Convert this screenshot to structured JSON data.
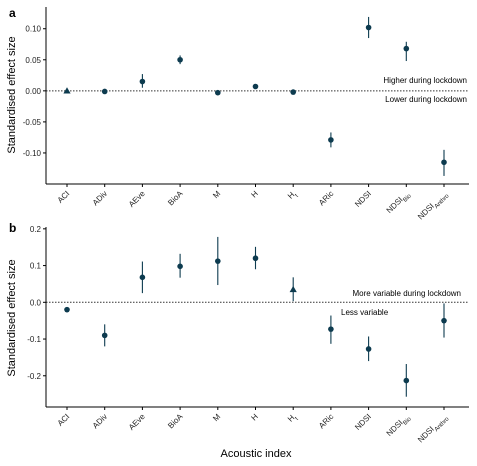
{
  "colors": {
    "mark": "#0d3b4f",
    "axis": "#000000",
    "zero_line": "#333333"
  },
  "x_axis_title": "Acoustic index",
  "chart_data": [
    {
      "type": "scatter",
      "panel": "a",
      "ylabel": "Standardised effect size",
      "ylim": [
        -0.15,
        0.135
      ],
      "yticks": [
        0.1,
        0.05,
        0.0,
        -0.05,
        -0.1
      ],
      "ytick_labels": [
        "0.10",
        "0.05",
        "0.00",
        "-0.05",
        "-0.10"
      ],
      "annotations": {
        "above": "Higher during lockdown",
        "below": "Lower during lockdown"
      },
      "categories": [
        {
          "main": "ACI",
          "sub": ""
        },
        {
          "main": "ADiv",
          "sub": ""
        },
        {
          "main": "AEve",
          "sub": ""
        },
        {
          "main": "BioA",
          "sub": ""
        },
        {
          "main": "M",
          "sub": ""
        },
        {
          "main": "H",
          "sub": ""
        },
        {
          "main": "H",
          "sub": "t"
        },
        {
          "main": "ARic",
          "sub": ""
        },
        {
          "main": "NDSI",
          "sub": ""
        },
        {
          "main": "NDSI",
          "sub": "Bio"
        },
        {
          "main": "NDSI",
          "sub": "Anthro"
        }
      ],
      "points": [
        {
          "value": 0.0,
          "low": null,
          "high": null,
          "marker": "triangle"
        },
        {
          "value": -0.001,
          "low": null,
          "high": null,
          "marker": "circle"
        },
        {
          "value": 0.015,
          "low": 0.005,
          "high": 0.027,
          "marker": "circle"
        },
        {
          "value": 0.05,
          "low": 0.043,
          "high": 0.057,
          "marker": "circle"
        },
        {
          "value": -0.003,
          "low": null,
          "high": null,
          "marker": "circle"
        },
        {
          "value": 0.007,
          "low": null,
          "high": null,
          "marker": "circle"
        },
        {
          "value": -0.002,
          "low": null,
          "high": null,
          "marker": "circle"
        },
        {
          "value": -0.079,
          "low": -0.091,
          "high": -0.067,
          "marker": "circle"
        },
        {
          "value": 0.102,
          "low": 0.085,
          "high": 0.119,
          "marker": "circle"
        },
        {
          "value": 0.068,
          "low": 0.048,
          "high": 0.079,
          "marker": "circle"
        },
        {
          "value": -0.115,
          "low": -0.137,
          "high": -0.095,
          "marker": "circle"
        }
      ]
    },
    {
      "type": "scatter",
      "panel": "b",
      "ylabel": "Standardised effect size",
      "ylim": [
        -0.285,
        0.205
      ],
      "yticks": [
        0.2,
        0.1,
        0.0,
        -0.1,
        -0.2
      ],
      "ytick_labels": [
        "0.2",
        "0.1",
        "0.0",
        "-0.1",
        "-0.2"
      ],
      "annotations": {
        "above": "More variable during lockdown",
        "below": "Less variable"
      },
      "categories": [
        {
          "main": "ACI",
          "sub": ""
        },
        {
          "main": "ADiv",
          "sub": ""
        },
        {
          "main": "AEve",
          "sub": ""
        },
        {
          "main": "BioA",
          "sub": ""
        },
        {
          "main": "M",
          "sub": ""
        },
        {
          "main": "H",
          "sub": ""
        },
        {
          "main": "H",
          "sub": "t"
        },
        {
          "main": "ARic",
          "sub": ""
        },
        {
          "main": "NDSI",
          "sub": ""
        },
        {
          "main": "NDSI",
          "sub": "Bio"
        },
        {
          "main": "NDSI",
          "sub": "Anthro"
        }
      ],
      "points": [
        {
          "value": -0.02,
          "low": null,
          "high": null,
          "marker": "circle"
        },
        {
          "value": -0.09,
          "low": -0.12,
          "high": -0.06,
          "marker": "circle"
        },
        {
          "value": 0.068,
          "low": 0.025,
          "high": 0.111,
          "marker": "circle"
        },
        {
          "value": 0.098,
          "low": 0.067,
          "high": 0.132,
          "marker": "circle"
        },
        {
          "value": 0.112,
          "low": 0.047,
          "high": 0.178,
          "marker": "circle"
        },
        {
          "value": 0.12,
          "low": 0.09,
          "high": 0.151,
          "marker": "circle"
        },
        {
          "value": 0.035,
          "low": 0.003,
          "high": 0.068,
          "marker": "triangle"
        },
        {
          "value": -0.073,
          "low": -0.113,
          "high": -0.036,
          "marker": "circle"
        },
        {
          "value": -0.127,
          "low": -0.16,
          "high": -0.093,
          "marker": "circle"
        },
        {
          "value": -0.213,
          "low": -0.257,
          "high": -0.168,
          "marker": "circle"
        },
        {
          "value": -0.05,
          "low": -0.096,
          "high": -0.003,
          "marker": "circle"
        }
      ]
    }
  ]
}
